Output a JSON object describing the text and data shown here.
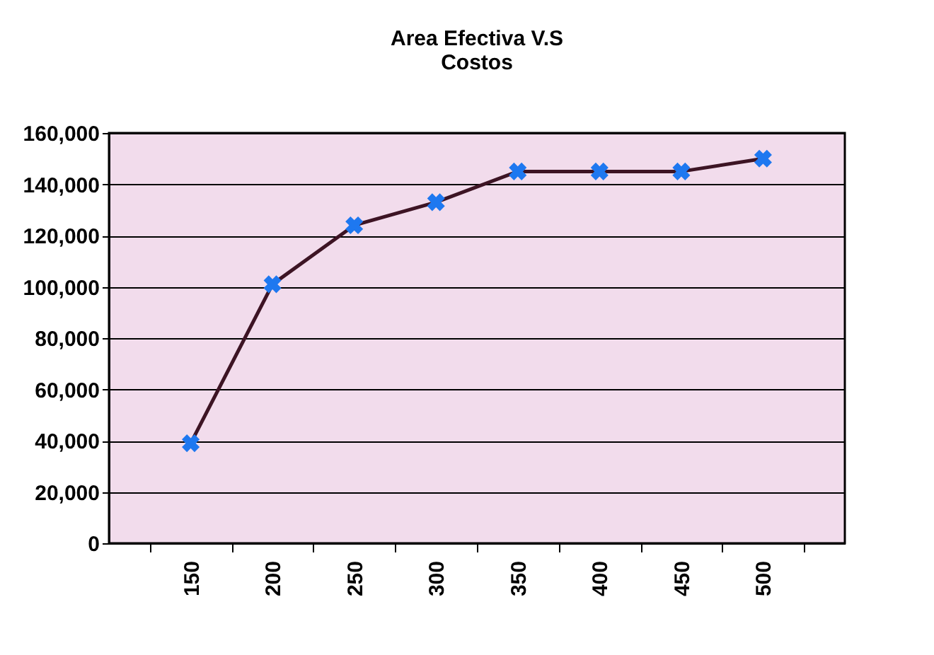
{
  "chart_data": {
    "type": "line",
    "title": [
      "Area Efectiva V.S",
      "Costos"
    ],
    "categories": [
      "150",
      "200",
      "250",
      "300",
      "350",
      "400",
      "450",
      "500"
    ],
    "series": [
      {
        "color": "#3d1424",
        "colors": [
          "#1e78f0",
          "#1e78f0",
          "#1e78f0",
          "#1e78f0",
          "#1e78f0",
          "#1e78f0",
          "#1e78f0",
          "#1e78f0"
        ],
        "values": [
          39000,
          101000,
          124000,
          133000,
          145000,
          145000,
          145000,
          150000
        ]
      }
    ],
    "ylim": [
      0,
      160000
    ],
    "yticks": [
      0,
      {
        "value": 20000,
        "label": "20,000"
      },
      {
        "value": 40000,
        "label": "40,000"
      },
      {
        "value": 60000,
        "label": "60,000"
      },
      {
        "value": 80000,
        "label": "80,000"
      },
      {
        "value": 100000,
        "label": "100,000"
      },
      {
        "value": 120000,
        "label": "120,000"
      },
      {
        "value": 140000,
        "label": "140,000"
      },
      {
        "value": 160000,
        "label": "160,000"
      }
    ],
    "grid": "y",
    "marker": "cross",
    "line_style": "solid"
  }
}
